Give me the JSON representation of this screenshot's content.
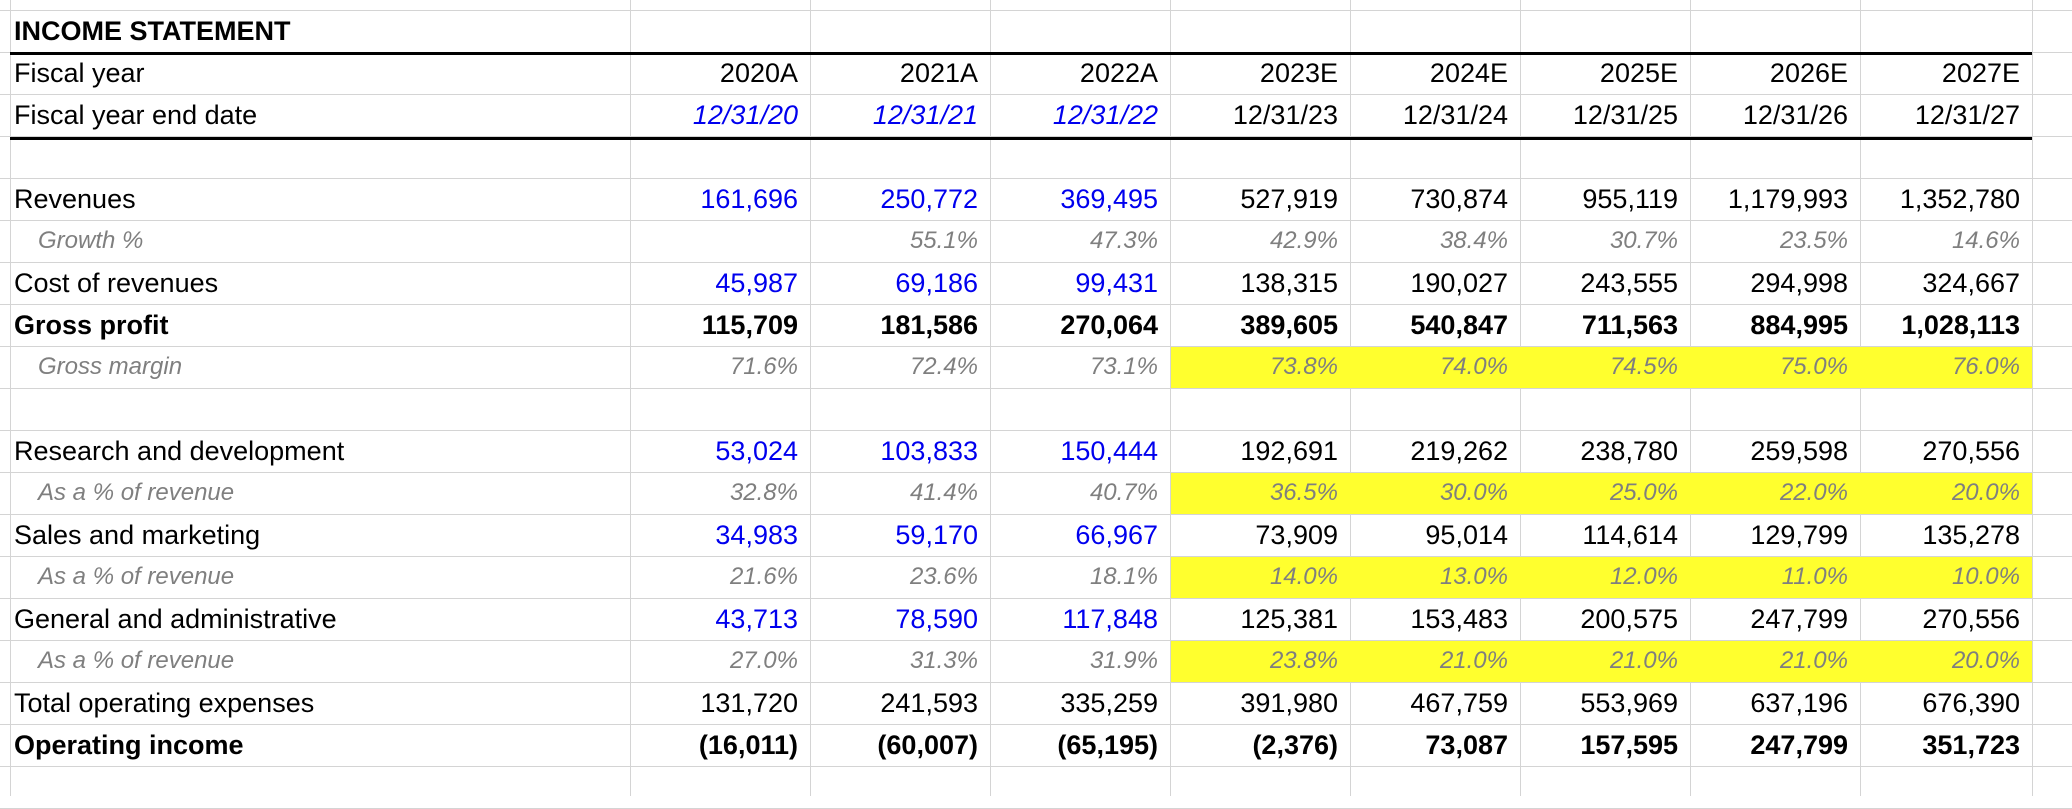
{
  "sheet": {
    "title": "INCOME STATEMENT",
    "header_rows": [
      {
        "key": "fiscal_year",
        "label": "Fiscal year",
        "values": [
          "2020A",
          "2021A",
          "2022A",
          "2023E",
          "2024E",
          "2025E",
          "2026E",
          "2027E"
        ]
      },
      {
        "key": "fiscal_year_end",
        "label": "Fiscal year end date",
        "values": [
          "12/31/20",
          "12/31/21",
          "12/31/22",
          "12/31/23",
          "12/31/24",
          "12/31/25",
          "12/31/26",
          "12/31/27"
        ]
      }
    ],
    "rows": [
      {
        "label": "Revenues",
        "type": "line",
        "values": [
          "161,696",
          "250,772",
          "369,495",
          "527,919",
          "730,874",
          "955,119",
          "1,179,993",
          "1,352,780"
        ]
      },
      {
        "label": "Growth %",
        "type": "pct",
        "values": [
          "",
          "55.1%",
          "47.3%",
          "42.9%",
          "38.4%",
          "30.7%",
          "23.5%",
          "14.6%"
        ]
      },
      {
        "label": "Cost of revenues",
        "type": "line",
        "values": [
          "45,987",
          "69,186",
          "99,431",
          "138,315",
          "190,027",
          "243,555",
          "294,998",
          "324,667"
        ]
      },
      {
        "label": "Gross profit",
        "type": "total",
        "values": [
          "115,709",
          "181,586",
          "270,064",
          "389,605",
          "540,847",
          "711,563",
          "884,995",
          "1,028,113"
        ]
      },
      {
        "label": "Gross margin",
        "type": "pct",
        "highlight": true,
        "values": [
          "71.6%",
          "72.4%",
          "73.1%",
          "73.8%",
          "74.0%",
          "74.5%",
          "75.0%",
          "76.0%"
        ]
      },
      {
        "label": "",
        "type": "blank",
        "values": []
      },
      {
        "label": "Research and development",
        "type": "line",
        "values": [
          "53,024",
          "103,833",
          "150,444",
          "192,691",
          "219,262",
          "238,780",
          "259,598",
          "270,556"
        ]
      },
      {
        "label": "As a % of revenue",
        "type": "pct",
        "highlight": true,
        "values": [
          "32.8%",
          "41.4%",
          "40.7%",
          "36.5%",
          "30.0%",
          "25.0%",
          "22.0%",
          "20.0%"
        ]
      },
      {
        "label": "Sales and marketing",
        "type": "line",
        "values": [
          "34,983",
          "59,170",
          "66,967",
          "73,909",
          "95,014",
          "114,614",
          "129,799",
          "135,278"
        ]
      },
      {
        "label": "As a % of revenue",
        "type": "pct",
        "highlight": true,
        "values": [
          "21.6%",
          "23.6%",
          "18.1%",
          "14.0%",
          "13.0%",
          "12.0%",
          "11.0%",
          "10.0%"
        ]
      },
      {
        "label": "General and administrative",
        "type": "line",
        "values": [
          "43,713",
          "78,590",
          "117,848",
          "125,381",
          "153,483",
          "200,575",
          "247,799",
          "270,556"
        ]
      },
      {
        "label": "As a % of revenue",
        "type": "pct",
        "highlight": true,
        "values": [
          "27.0%",
          "31.3%",
          "31.9%",
          "23.8%",
          "21.0%",
          "21.0%",
          "21.0%",
          "20.0%"
        ]
      },
      {
        "label": "Total operating expenses",
        "type": "plain",
        "values": [
          "131,720",
          "241,593",
          "335,259",
          "391,980",
          "467,759",
          "553,969",
          "637,196",
          "676,390"
        ]
      },
      {
        "label": "Operating income",
        "type": "total",
        "values": [
          "(16,011)",
          "(60,007)",
          "(65,195)",
          "(2,376)",
          "73,087",
          "157,595",
          "247,799",
          "351,723"
        ]
      }
    ],
    "actual_periods": 3,
    "colors": {
      "input_blue": "#0000ee",
      "pct_grey": "#7f7f7f",
      "highlight_yellow": "#ffff2e",
      "gridline": "#d4d4d4"
    }
  }
}
